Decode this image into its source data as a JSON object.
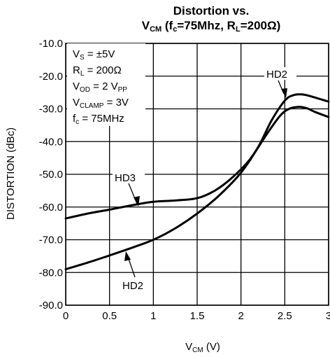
{
  "chart_data": {
    "type": "line",
    "title_line1": "Distortion vs.",
    "title_line2": "V_CM (f_c=75Mhz, R_L=200Ω)",
    "xlabel": "V_CM (V)",
    "ylabel": "DISTORTION (dBc)",
    "xlim": [
      0,
      3
    ],
    "ylim": [
      -90,
      -10
    ],
    "x_ticks": [
      0,
      0.5,
      1,
      1.5,
      2,
      2.5,
      3
    ],
    "x_tick_labels": [
      "0",
      "0.5",
      "1",
      "1.5",
      "2",
      "2.5",
      "3"
    ],
    "y_ticks": [
      -10,
      -20,
      -30,
      -40,
      -50,
      -60,
      -70,
      -80,
      -90
    ],
    "y_tick_labels": [
      "-10.0",
      "-20.0",
      "-30.0",
      "-40.0",
      "-50.0",
      "-60.0",
      "-70.0",
      "-80.0",
      "-90.0"
    ],
    "grid": true,
    "conditions": [
      "V_S = ±5V",
      "R_L = 200Ω",
      "V_OD = 2 V_PP",
      "V_CLAMP = 3V",
      "f_c = 75MHz"
    ],
    "series": [
      {
        "name": "HD3",
        "x": [
          0,
          0.25,
          0.5,
          0.75,
          1.0,
          1.25,
          1.5,
          1.7,
          1.9,
          2.1,
          2.3,
          2.45,
          2.55,
          2.65,
          2.75,
          2.85,
          3.0
        ],
        "y": [
          -63.5,
          -62.0,
          -60.8,
          -59.5,
          -58.4,
          -58.0,
          -57.3,
          -55.0,
          -51.0,
          -45.5,
          -37.5,
          -32.0,
          -30.0,
          -29.4,
          -29.8,
          -31.0,
          -32.5
        ]
      },
      {
        "name": "HD2",
        "x": [
          0,
          0.25,
          0.5,
          0.75,
          1.0,
          1.25,
          1.5,
          1.75,
          2.0,
          2.2,
          2.35,
          2.5,
          2.6,
          2.7,
          2.8,
          3.0
        ],
        "y": [
          -79.0,
          -77.0,
          -74.8,
          -72.5,
          -70.0,
          -66.5,
          -62.0,
          -56.5,
          -49.5,
          -41.5,
          -33.5,
          -27.5,
          -25.8,
          -25.6,
          -26.2,
          -27.8
        ]
      }
    ]
  }
}
